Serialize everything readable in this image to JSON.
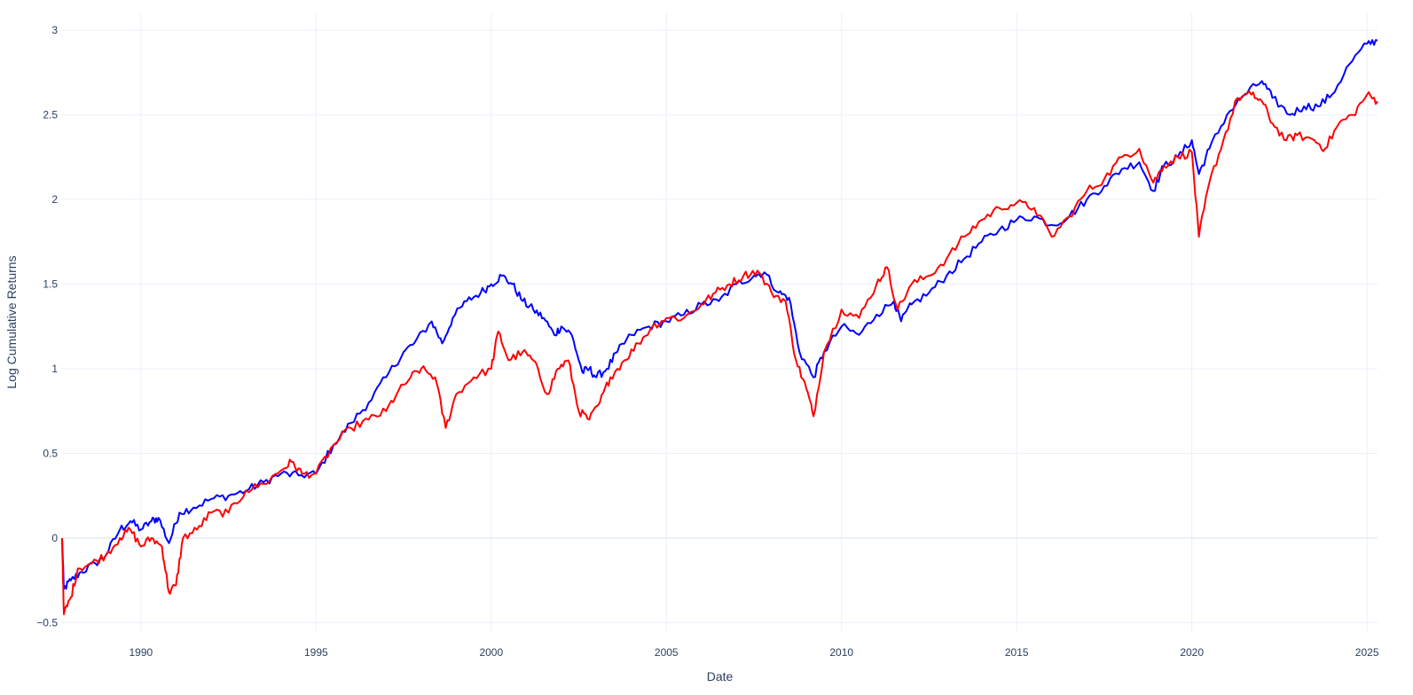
{
  "chart_data": {
    "type": "line",
    "title": "",
    "xlabel": "Date",
    "ylabel": "Log Cumulative Returns",
    "xlim": [
      1987.75,
      2025.3
    ],
    "ylim": [
      -0.55,
      3.1
    ],
    "grid": true,
    "legend": "none",
    "x_ticks": [
      1990,
      1995,
      2000,
      2005,
      2010,
      2015,
      2020,
      2025
    ],
    "y_ticks": [
      -0.5,
      0,
      0.5,
      1,
      1.5,
      2,
      2.5,
      3
    ],
    "y_tick_labels": [
      "−0.5",
      "0",
      "0.5",
      "1",
      "1.5",
      "2",
      "2.5",
      "3"
    ],
    "series": [
      {
        "color": "#0000ff",
        "points": [
          [
            1987.75,
            0.0
          ],
          [
            1987.8,
            -0.3
          ],
          [
            1988.0,
            -0.25
          ],
          [
            1988.3,
            -0.2
          ],
          [
            1988.7,
            -0.15
          ],
          [
            1989.0,
            -0.1
          ],
          [
            1989.4,
            0.05
          ],
          [
            1989.7,
            0.1
          ],
          [
            1990.0,
            0.05
          ],
          [
            1990.3,
            0.1
          ],
          [
            1990.5,
            0.12
          ],
          [
            1990.8,
            -0.03
          ],
          [
            1991.1,
            0.15
          ],
          [
            1991.5,
            0.18
          ],
          [
            1992.0,
            0.23
          ],
          [
            1992.5,
            0.25
          ],
          [
            1993.0,
            0.28
          ],
          [
            1993.5,
            0.33
          ],
          [
            1994.0,
            0.38
          ],
          [
            1994.5,
            0.37
          ],
          [
            1995.0,
            0.38
          ],
          [
            1995.5,
            0.55
          ],
          [
            1996.0,
            0.68
          ],
          [
            1996.5,
            0.8
          ],
          [
            1997.0,
            0.95
          ],
          [
            1997.5,
            1.1
          ],
          [
            1997.8,
            1.15
          ],
          [
            1998.3,
            1.28
          ],
          [
            1998.6,
            1.15
          ],
          [
            1998.9,
            1.3
          ],
          [
            1999.3,
            1.4
          ],
          [
            1999.7,
            1.45
          ],
          [
            2000.0,
            1.5
          ],
          [
            2000.3,
            1.55
          ],
          [
            2000.6,
            1.5
          ],
          [
            2000.9,
            1.4
          ],
          [
            2001.2,
            1.35
          ],
          [
            2001.5,
            1.3
          ],
          [
            2001.8,
            1.2
          ],
          [
            2002.0,
            1.25
          ],
          [
            2002.3,
            1.2
          ],
          [
            2002.6,
            0.98
          ],
          [
            2002.8,
            1.0
          ],
          [
            2003.0,
            0.95
          ],
          [
            2003.3,
            1.0
          ],
          [
            2003.6,
            1.1
          ],
          [
            2004.0,
            1.2
          ],
          [
            2004.5,
            1.25
          ],
          [
            2005.0,
            1.28
          ],
          [
            2005.5,
            1.32
          ],
          [
            2006.0,
            1.38
          ],
          [
            2006.5,
            1.4
          ],
          [
            2007.0,
            1.5
          ],
          [
            2007.5,
            1.55
          ],
          [
            2007.8,
            1.57
          ],
          [
            2008.2,
            1.45
          ],
          [
            2008.5,
            1.42
          ],
          [
            2008.8,
            1.1
          ],
          [
            2009.2,
            0.95
          ],
          [
            2009.5,
            1.1
          ],
          [
            2010.0,
            1.25
          ],
          [
            2010.5,
            1.2
          ],
          [
            2011.0,
            1.32
          ],
          [
            2011.5,
            1.4
          ],
          [
            2011.7,
            1.28
          ],
          [
            2012.0,
            1.38
          ],
          [
            2012.5,
            1.45
          ],
          [
            2013.0,
            1.55
          ],
          [
            2013.5,
            1.65
          ],
          [
            2014.0,
            1.75
          ],
          [
            2014.5,
            1.82
          ],
          [
            2015.0,
            1.88
          ],
          [
            2015.5,
            1.9
          ],
          [
            2016.0,
            1.85
          ],
          [
            2016.5,
            1.9
          ],
          [
            2017.0,
            2.0
          ],
          [
            2017.5,
            2.08
          ],
          [
            2018.0,
            2.18
          ],
          [
            2018.5,
            2.22
          ],
          [
            2018.9,
            2.05
          ],
          [
            2019.2,
            2.2
          ],
          [
            2019.6,
            2.25
          ],
          [
            2020.0,
            2.35
          ],
          [
            2020.2,
            2.15
          ],
          [
            2020.5,
            2.3
          ],
          [
            2021.0,
            2.5
          ],
          [
            2021.5,
            2.62
          ],
          [
            2022.0,
            2.7
          ],
          [
            2022.3,
            2.6
          ],
          [
            2022.8,
            2.5
          ],
          [
            2023.2,
            2.55
          ],
          [
            2023.6,
            2.55
          ],
          [
            2024.0,
            2.62
          ],
          [
            2024.5,
            2.8
          ],
          [
            2025.0,
            2.92
          ],
          [
            2025.3,
            2.94
          ]
        ]
      },
      {
        "color": "#ff0000",
        "points": [
          [
            1987.75,
            0.0
          ],
          [
            1987.8,
            -0.45
          ],
          [
            1988.0,
            -0.35
          ],
          [
            1988.2,
            -0.18
          ],
          [
            1988.6,
            -0.15
          ],
          [
            1989.0,
            -0.1
          ],
          [
            1989.4,
            0.0
          ],
          [
            1989.7,
            0.05
          ],
          [
            1990.0,
            -0.05
          ],
          [
            1990.3,
            0.0
          ],
          [
            1990.6,
            -0.05
          ],
          [
            1990.8,
            -0.32
          ],
          [
            1991.0,
            -0.28
          ],
          [
            1991.2,
            0.0
          ],
          [
            1991.6,
            0.05
          ],
          [
            1992.0,
            0.15
          ],
          [
            1992.5,
            0.15
          ],
          [
            1993.0,
            0.28
          ],
          [
            1993.5,
            0.32
          ],
          [
            1994.0,
            0.4
          ],
          [
            1994.3,
            0.45
          ],
          [
            1994.6,
            0.38
          ],
          [
            1995.0,
            0.38
          ],
          [
            1995.5,
            0.55
          ],
          [
            1996.0,
            0.65
          ],
          [
            1996.5,
            0.7
          ],
          [
            1997.0,
            0.75
          ],
          [
            1997.3,
            0.85
          ],
          [
            1997.7,
            0.95
          ],
          [
            1998.0,
            1.0
          ],
          [
            1998.4,
            0.95
          ],
          [
            1998.7,
            0.65
          ],
          [
            1999.0,
            0.85
          ],
          [
            1999.5,
            0.95
          ],
          [
            2000.0,
            1.0
          ],
          [
            2000.2,
            1.22
          ],
          [
            2000.5,
            1.05
          ],
          [
            2000.9,
            1.1
          ],
          [
            2001.2,
            1.05
          ],
          [
            2001.6,
            0.85
          ],
          [
            2001.9,
            1.0
          ],
          [
            2002.2,
            1.05
          ],
          [
            2002.5,
            0.75
          ],
          [
            2002.8,
            0.7
          ],
          [
            2003.1,
            0.8
          ],
          [
            2003.4,
            0.95
          ],
          [
            2003.8,
            1.05
          ],
          [
            2004.2,
            1.15
          ],
          [
            2004.6,
            1.25
          ],
          [
            2005.0,
            1.3
          ],
          [
            2005.5,
            1.3
          ],
          [
            2006.0,
            1.38
          ],
          [
            2006.4,
            1.45
          ],
          [
            2006.8,
            1.5
          ],
          [
            2007.2,
            1.55
          ],
          [
            2007.6,
            1.58
          ],
          [
            2008.0,
            1.45
          ],
          [
            2008.4,
            1.4
          ],
          [
            2008.7,
            1.05
          ],
          [
            2009.0,
            0.88
          ],
          [
            2009.2,
            0.72
          ],
          [
            2009.5,
            1.1
          ],
          [
            2010.0,
            1.35
          ],
          [
            2010.5,
            1.3
          ],
          [
            2011.0,
            1.5
          ],
          [
            2011.3,
            1.6
          ],
          [
            2011.6,
            1.35
          ],
          [
            2012.0,
            1.5
          ],
          [
            2012.5,
            1.55
          ],
          [
            2013.0,
            1.65
          ],
          [
            2013.5,
            1.78
          ],
          [
            2014.0,
            1.88
          ],
          [
            2014.5,
            1.95
          ],
          [
            2015.0,
            1.98
          ],
          [
            2015.5,
            1.95
          ],
          [
            2016.0,
            1.78
          ],
          [
            2016.5,
            1.9
          ],
          [
            2017.0,
            2.05
          ],
          [
            2017.5,
            2.12
          ],
          [
            2018.0,
            2.25
          ],
          [
            2018.5,
            2.3
          ],
          [
            2018.9,
            2.1
          ],
          [
            2019.2,
            2.2
          ],
          [
            2019.6,
            2.25
          ],
          [
            2020.0,
            2.28
          ],
          [
            2020.2,
            1.78
          ],
          [
            2020.5,
            2.1
          ],
          [
            2020.9,
            2.35
          ],
          [
            2021.3,
            2.6
          ],
          [
            2021.7,
            2.62
          ],
          [
            2022.0,
            2.58
          ],
          [
            2022.3,
            2.45
          ],
          [
            2022.7,
            2.35
          ],
          [
            2023.0,
            2.38
          ],
          [
            2023.5,
            2.35
          ],
          [
            2023.8,
            2.3
          ],
          [
            2024.2,
            2.45
          ],
          [
            2024.6,
            2.5
          ],
          [
            2025.0,
            2.62
          ],
          [
            2025.3,
            2.58
          ]
        ]
      }
    ]
  }
}
